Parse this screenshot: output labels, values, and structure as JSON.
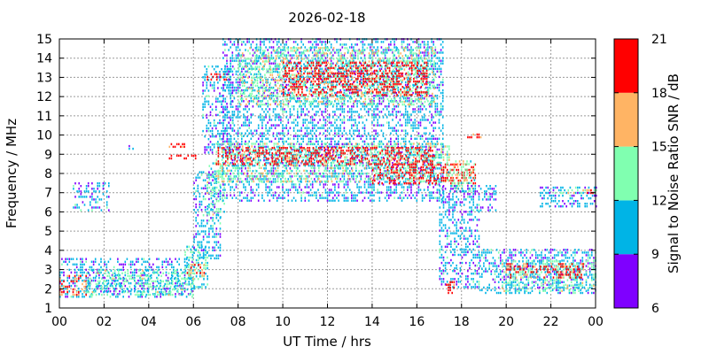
{
  "chart_data": {
    "type": "heatmap",
    "title": "2026-02-18",
    "xlabel": "UT Time / hrs",
    "ylabel": "Frequency / MHz",
    "xlim": [
      0,
      24
    ],
    "ylim": [
      1,
      15
    ],
    "x_ticks": [
      "00",
      "02",
      "04",
      "06",
      "08",
      "10",
      "12",
      "14",
      "16",
      "18",
      "20",
      "22",
      "00"
    ],
    "y_ticks": [
      "1",
      "2",
      "3",
      "4",
      "5",
      "6",
      "7",
      "8",
      "9",
      "10",
      "11",
      "12",
      "13",
      "14",
      "15"
    ],
    "grid": true,
    "colorbar": {
      "label": "Signal to Noise Ratio SNR / dB",
      "ticks": [
        "6",
        "9",
        "12",
        "15",
        "18",
        "21"
      ],
      "bins": [
        {
          "from": 6,
          "to": 9,
          "color": "#7f00ff"
        },
        {
          "from": 9,
          "to": 12,
          "color": "#00b4e6"
        },
        {
          "from": 12,
          "to": 15,
          "color": "#80ffb0"
        },
        {
          "from": 15,
          "to": 18,
          "color": "#ffb464"
        },
        {
          "from": 18,
          "to": 21,
          "color": "#ff0000"
        }
      ]
    },
    "regions": [
      {
        "t0": 0,
        "t1": 6,
        "f0": 1.5,
        "f1": 3.5,
        "snr": 10
      },
      {
        "t0": 0,
        "t1": 1.2,
        "f0": 1.6,
        "f1": 2.6,
        "snr": 19
      },
      {
        "t0": 1.2,
        "t1": 6,
        "f0": 1.6,
        "f1": 3.0,
        "snr": 13
      },
      {
        "t0": 0.6,
        "t1": 2.2,
        "f0": 6.0,
        "f1": 7.5,
        "snr": 10
      },
      {
        "t0": 3.1,
        "t1": 3.3,
        "f0": 9.2,
        "f1": 9.5,
        "snr": 10
      },
      {
        "t0": 5.6,
        "t1": 6.6,
        "f0": 2.0,
        "f1": 4.2,
        "snr": 12
      },
      {
        "t0": 5.7,
        "t1": 6.6,
        "f0": 2.6,
        "f1": 3.2,
        "snr": 17
      },
      {
        "t0": 4.9,
        "t1": 6.2,
        "f0": 8.7,
        "f1": 8.95,
        "snr": 20
      },
      {
        "t0": 4.9,
        "t1": 5.6,
        "f0": 9.3,
        "f1": 9.55,
        "snr": 20
      },
      {
        "t0": 6.0,
        "t1": 7.2,
        "f0": 3.5,
        "f1": 8.0,
        "snr": 10
      },
      {
        "t0": 6.6,
        "t1": 7.4,
        "f0": 5.5,
        "f1": 8.5,
        "snr": 13
      },
      {
        "t0": 6.4,
        "t1": 7.8,
        "f0": 9.0,
        "f1": 13.5,
        "snr": 10
      },
      {
        "t0": 6.6,
        "t1": 7.6,
        "f0": 12.8,
        "f1": 13.1,
        "snr": 20
      },
      {
        "t0": 7.3,
        "t1": 17.2,
        "f0": 6.5,
        "f1": 15.0,
        "snr": 10
      },
      {
        "t0": 8.0,
        "t1": 16.8,
        "f0": 11.5,
        "f1": 14.5,
        "snr": 14
      },
      {
        "t0": 10.0,
        "t1": 16.5,
        "f0": 12.0,
        "f1": 13.8,
        "snr": 20
      },
      {
        "t0": 7.0,
        "t1": 17.5,
        "f0": 7.5,
        "f1": 9.5,
        "snr": 14
      },
      {
        "t0": 7.0,
        "t1": 16.8,
        "f0": 8.4,
        "f1": 9.3,
        "snr": 20
      },
      {
        "t0": 14.0,
        "t1": 18.6,
        "f0": 7.4,
        "f1": 8.4,
        "snr": 20
      },
      {
        "t0": 17.3,
        "t1": 18.6,
        "f0": 7.0,
        "f1": 8.6,
        "snr": 14
      },
      {
        "t0": 17.0,
        "t1": 19.5,
        "f0": 6.0,
        "f1": 7.3,
        "snr": 10
      },
      {
        "t0": 18.0,
        "t1": 18.9,
        "f0": 9.8,
        "f1": 10.05,
        "snr": 20
      },
      {
        "t0": 17.0,
        "t1": 18.8,
        "f0": 2.0,
        "f1": 6.0,
        "snr": 10
      },
      {
        "t0": 17.3,
        "t1": 17.7,
        "f0": 1.7,
        "f1": 2.3,
        "snr": 20
      },
      {
        "t0": 18.8,
        "t1": 24.0,
        "f0": 1.7,
        "f1": 4.0,
        "snr": 10
      },
      {
        "t0": 19.8,
        "t1": 24.0,
        "f0": 1.8,
        "f1": 3.4,
        "snr": 13
      },
      {
        "t0": 20.0,
        "t1": 23.5,
        "f0": 2.5,
        "f1": 3.3,
        "snr": 19
      },
      {
        "t0": 21.5,
        "t1": 24.0,
        "f0": 6.2,
        "f1": 7.2,
        "snr": 10
      },
      {
        "t0": 22.5,
        "t1": 24.0,
        "f0": 6.9,
        "f1": 7.1,
        "snr": 15
      },
      {
        "t0": 23.6,
        "t1": 23.9,
        "f0": 6.9,
        "f1": 7.1,
        "snr": 20
      }
    ]
  }
}
